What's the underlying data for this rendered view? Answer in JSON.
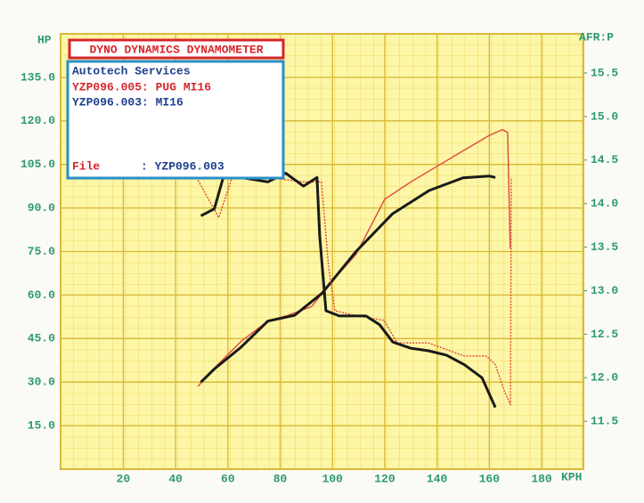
{
  "chart_data": {
    "type": "line",
    "y_label": "HP",
    "y2_label": "AFR:P",
    "x_label": "KPH",
    "xlim": [
      -4,
      196
    ],
    "xticks": [
      20,
      40,
      60,
      80,
      100,
      120,
      140,
      160,
      180
    ],
    "ylim": [
      0,
      150
    ],
    "yticks": [
      {
        "value": 15,
        "label": "15.0"
      },
      {
        "value": 30,
        "label": "30.0"
      },
      {
        "value": 45,
        "label": "45.0"
      },
      {
        "value": 60,
        "label": "60.0"
      },
      {
        "value": 75,
        "label": "75.0"
      },
      {
        "value": 90,
        "label": "90.0"
      },
      {
        "value": 105,
        "label": "105.0"
      },
      {
        "value": 120,
        "label": "120.0"
      },
      {
        "value": 135,
        "label": "135.0"
      }
    ],
    "y2lim": [
      10.95,
      15.95
    ],
    "y2ticks": [
      11.5,
      {
        "value": 12,
        "label": "12.0"
      },
      12.5,
      {
        "value": 13,
        "label": "13.0"
      },
      13.5,
      {
        "value": 14,
        "label": "14.0"
      },
      14.5,
      {
        "value": 15,
        "label": "15.0"
      },
      15.5
    ],
    "grid": true,
    "legend": {
      "title": "DYNO DYNAMICS DYNAMOMETER",
      "company": "Autotech Services",
      "entries": [
        "YZP096.005: PUG MI16",
        "YZP096.003: MI16"
      ],
      "file_label": "File",
      "file_value": ": YZP096.003"
    },
    "series": [
      {
        "color": "#e0473c",
        "axis": "y",
        "dashed": false,
        "x": [
          48.5,
          55,
          65,
          75.3,
          83,
          92,
          99,
          109,
          120,
          130,
          144,
          160,
          165,
          167,
          168
        ],
        "values": [
          28.5,
          35,
          44,
          51,
          53,
          56,
          64,
          74,
          93,
          99,
          106.5,
          115,
          117,
          116,
          76
        ]
      },
      {
        "color": "#1a1a1a",
        "axis": "y",
        "dashed": false,
        "x": [
          49.7,
          54.8,
          65,
          75.3,
          85.5,
          96,
          109,
          123,
          137,
          150,
          160,
          162.3
        ],
        "values": [
          30,
          34.5,
          42,
          51,
          53,
          60.6,
          75,
          88,
          96,
          100.4,
          101,
          100.5
        ]
      },
      {
        "color": "#e0473c",
        "axis": "y2",
        "dashed": true,
        "x": [
          48,
          56.5,
          61.6,
          75.3,
          88.9,
          95.8,
          98.5,
          100.9,
          109.4,
          119.7,
          124.8,
          136.7,
          150.4,
          158.9,
          162.3,
          165.7,
          168.1,
          168.4
        ],
        "values": [
          14.3,
          13.84,
          14.3,
          14.3,
          14.25,
          14.25,
          13.28,
          12.77,
          12.71,
          12.66,
          12.4,
          12.4,
          12.25,
          12.25,
          12.15,
          11.85,
          11.69,
          14.3
        ]
      },
      {
        "color": "#1a1a1a",
        "axis": "y2",
        "dashed": false,
        "x": [
          49.7,
          54.8,
          58.2,
          65,
          75.3,
          82.1,
          88.9,
          94.1,
          95.1,
          97.5,
          102.6,
          112.8,
          118,
          123.1,
          129.9,
          136.7,
          143.6,
          150.4,
          157.2,
          162.3
        ],
        "values": [
          13.86,
          13.94,
          14.3,
          14.3,
          14.25,
          14.35,
          14.2,
          14.3,
          13.63,
          12.77,
          12.71,
          12.71,
          12.61,
          12.41,
          12.34,
          12.31,
          12.26,
          12.15,
          12.0,
          11.66
        ]
      }
    ]
  }
}
